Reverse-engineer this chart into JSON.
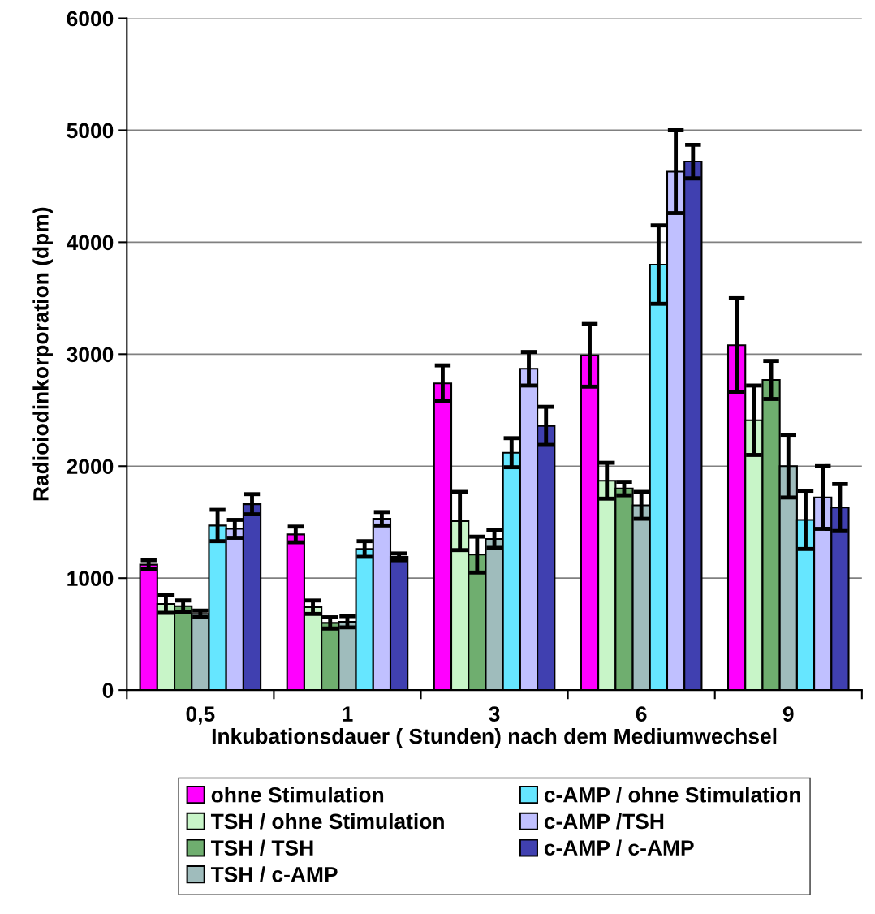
{
  "chart_data": {
    "type": "bar",
    "xlabel": "Inkubationsdauer ( Stunden) nach dem Mediumwechsel",
    "ylabel": "Radioiodinkorporation (dpm)",
    "categories": [
      "0,5",
      "1",
      "3",
      "6",
      "9"
    ],
    "ylim": [
      0,
      6000
    ],
    "yticks": [
      0,
      1000,
      2000,
      3000,
      4000,
      5000,
      6000
    ],
    "grid": "y",
    "legend": "bottom",
    "series": [
      {
        "name": "ohne Stimulation",
        "color": "#ff00ff",
        "values": [
          1120,
          1390,
          2740,
          2990,
          3080
        ],
        "errors": [
          40,
          70,
          160,
          280,
          420
        ]
      },
      {
        "name": "TSH / ohne Stimulation",
        "color": "#c8f5c8",
        "values": [
          770,
          740,
          1510,
          1870,
          2410
        ],
        "errors": [
          80,
          60,
          260,
          160,
          310
        ]
      },
      {
        "name": "TSH / TSH",
        "color": "#6fae6f",
        "values": [
          750,
          600,
          1210,
          1800,
          2770
        ],
        "errors": [
          50,
          50,
          160,
          60,
          170
        ]
      },
      {
        "name": "TSH / c-AMP",
        "color": "#9fbcbc",
        "values": [
          680,
          610,
          1350,
          1650,
          2000
        ],
        "errors": [
          30,
          50,
          80,
          120,
          280
        ]
      },
      {
        "name": "c-AMP / ohne Stimulation",
        "color": "#66e6ff",
        "values": [
          1470,
          1260,
          2120,
          3800,
          1520
        ],
        "errors": [
          140,
          70,
          130,
          350,
          260
        ]
      },
      {
        "name": "c-AMP /TSH",
        "color": "#c0c0ff",
        "values": [
          1440,
          1530,
          2870,
          4630,
          1720
        ],
        "errors": [
          80,
          60,
          150,
          370,
          280
        ]
      },
      {
        "name": "c-AMP / c-AMP",
        "color": "#4040b0",
        "values": [
          1660,
          1190,
          2360,
          4720,
          1630
        ],
        "errors": [
          90,
          30,
          170,
          150,
          210
        ]
      }
    ]
  }
}
